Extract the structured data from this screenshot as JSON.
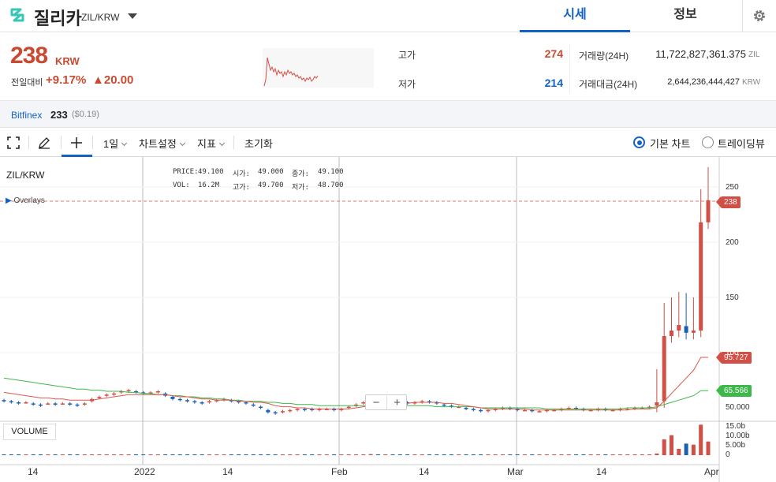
{
  "header": {
    "coin_name": "질리카",
    "pair": "ZIL/KRW",
    "tabs": [
      {
        "label": "시세"
      },
      {
        "label": "정보"
      }
    ]
  },
  "summary": {
    "price": "238",
    "unit": "KRW",
    "change_label": "전일대비",
    "change_rate": "+9.17%",
    "change_amount": "▲20.00",
    "high_label": "고가",
    "high": "274",
    "low_label": "저가",
    "low": "214",
    "volume_label": "거래량(24H)",
    "volume": "11,722,827,361.375",
    "volume_unit": "ZIL",
    "value_label": "거래대금(24H)",
    "value": "2,644,236,444,427",
    "value_unit": "KRW"
  },
  "exchange": {
    "name": "Bitfinex",
    "price": "233",
    "usd": "($0.19)"
  },
  "toolbar": {
    "interval": "1일",
    "chart_settings": "차트설정",
    "indicators": "지표",
    "reset": "초기화",
    "basic_chart": "기본 차트",
    "tradingview": "트레이딩뷰"
  },
  "chart_legend": {
    "symbol": "ZIL/KRW",
    "price_label": "PRICE:",
    "price": "49.100",
    "open_label": "시가:",
    "open": "49.000",
    "close_label": "종가:",
    "close": "49.100",
    "vol_label": "VOL:",
    "vol": "16.2M",
    "high_label": "고가:",
    "high": "49.700",
    "low_label": "저가:",
    "low": "48.700",
    "overlays": "Overlays",
    "volume": "VOLUME"
  },
  "chart_tags": {
    "last": "238",
    "ma_short": "95.727",
    "ma_long": "65.566"
  },
  "colors": {
    "up": "#d24f45",
    "down": "#1a5fb4",
    "ma_short": "#e0574f",
    "ma_long": "#3cb94a",
    "accent": "#1261c4"
  },
  "chart_data": {
    "type": "candlestick",
    "y_ticks": [
      "250",
      "200",
      "150",
      "100",
      "50.000"
    ],
    "volume_ticks": [
      "15.0b",
      "10.00b",
      "5.00b",
      "0"
    ],
    "x_ticks": [
      "14",
      "2022",
      "14",
      "Feb",
      "14",
      "Mar",
      "14",
      "Apr"
    ],
    "ylim": [
      40,
      275
    ],
    "closes": [
      56,
      55,
      54,
      55,
      53,
      52,
      54,
      53,
      54,
      53,
      52,
      54,
      58,
      60,
      62,
      63,
      65,
      66,
      64,
      63,
      64,
      65,
      61,
      58,
      57,
      56,
      55,
      54,
      56,
      57,
      58,
      56,
      55,
      54,
      52,
      50,
      46,
      45,
      47,
      48,
      49,
      48,
      48,
      49,
      49,
      48,
      49,
      51,
      53,
      55,
      57,
      56,
      58,
      57,
      55,
      54,
      55,
      56,
      55,
      54,
      52,
      51,
      51,
      49,
      48,
      47,
      48,
      49,
      50,
      49,
      48,
      48,
      47,
      47,
      48,
      48,
      49,
      50,
      49,
      48,
      48,
      49,
      48,
      48,
      49,
      49,
      50,
      50,
      51,
      55,
      115,
      120,
      125,
      118,
      120,
      218,
      238
    ],
    "opens": [
      57,
      56,
      55,
      55,
      54,
      53,
      54,
      54,
      54,
      54,
      53,
      53,
      56,
      59,
      61,
      62,
      64,
      65,
      65,
      64,
      63,
      64,
      63,
      60,
      58,
      57,
      56,
      55,
      55,
      56,
      57,
      57,
      56,
      55,
      53,
      51,
      48,
      46,
      46,
      47,
      48,
      49,
      49,
      48,
      49,
      49,
      48,
      50,
      52,
      54,
      56,
      57,
      57,
      58,
      56,
      55,
      54,
      55,
      56,
      55,
      53,
      52,
      51,
      50,
      49,
      48,
      47,
      48,
      49,
      50,
      49,
      48,
      48,
      47,
      47,
      48,
      48,
      49,
      50,
      49,
      48,
      48,
      49,
      48,
      48,
      49,
      49,
      50,
      50,
      52,
      56,
      115,
      120,
      124,
      118,
      120,
      218
    ],
    "volumes": [
      0.3,
      0.2,
      0.2,
      0.2,
      0.1,
      0.2,
      0.2,
      0.1,
      0.2,
      0.1,
      0.2,
      0.2,
      0.4,
      0.4,
      0.4,
      0.3,
      0.4,
      0.3,
      0.4,
      0.2,
      0.3,
      0.3,
      0.4,
      0.3,
      0.2,
      0.2,
      0.2,
      0.2,
      0.2,
      0.2,
      0.3,
      0.2,
      0.2,
      0.2,
      0.2,
      0.2,
      0.4,
      0.3,
      0.2,
      0.2,
      0.2,
      0.2,
      0.1,
      0.2,
      0.2,
      0.2,
      0.2,
      0.3,
      0.4,
      0.4,
      0.5,
      0.4,
      0.4,
      0.3,
      0.3,
      0.2,
      0.2,
      0.2,
      0.2,
      0.2,
      0.2,
      0.2,
      0.2,
      0.2,
      0.2,
      0.3,
      0.2,
      0.2,
      0.2,
      0.2,
      0.2,
      0.2,
      0.2,
      0.2,
      0.2,
      0.2,
      0.2,
      0.3,
      0.3,
      0.2,
      0.2,
      0.2,
      0.2,
      0.2,
      0.2,
      0.2,
      0.2,
      0.3,
      0.3,
      0.8,
      7.5,
      9.5,
      3.0,
      5.5,
      5.0,
      14.5,
      6.5
    ],
    "ma_short": [
      64,
      63,
      62,
      61,
      60,
      59,
      59,
      58,
      58,
      57,
      57,
      57,
      57,
      58,
      59,
      60,
      61,
      62,
      62,
      62,
      62,
      62,
      62,
      61,
      60,
      60,
      59,
      58,
      58,
      57,
      57,
      57,
      56,
      56,
      55,
      55,
      54,
      52,
      51,
      51,
      50,
      50,
      49,
      49,
      49,
      49,
      49,
      49,
      50,
      51,
      52,
      53,
      53,
      54,
      54,
      54,
      55,
      55,
      55,
      55,
      54,
      54,
      53,
      52,
      51,
      50,
      49,
      49,
      49,
      49,
      49,
      49,
      48,
      48,
      48,
      48,
      48,
      48,
      48,
      48,
      48,
      48,
      48,
      48,
      48,
      48,
      49,
      49,
      49,
      50,
      56,
      63,
      70,
      77,
      84,
      95.727,
      95.727
    ],
    "ma_long": [
      77,
      76,
      75,
      74,
      73,
      72,
      71,
      70,
      69,
      68,
      67,
      67,
      66,
      66,
      65,
      65,
      65,
      64,
      64,
      63,
      63,
      62,
      62,
      61,
      61,
      60,
      60,
      59,
      59,
      58,
      58,
      57,
      57,
      56,
      56,
      56,
      55,
      55,
      54,
      54,
      53,
      53,
      53,
      52,
      52,
      52,
      52,
      52,
      52,
      52,
      52,
      52,
      52,
      52,
      52,
      52,
      52,
      52,
      52,
      51,
      51,
      51,
      51,
      51,
      51,
      50,
      50,
      50,
      50,
      50,
      50,
      50,
      50,
      50,
      49,
      49,
      49,
      49,
      49,
      49,
      49,
      49,
      49,
      49,
      49,
      50,
      50,
      50,
      50,
      51,
      53,
      55,
      57,
      59,
      61,
      65.566,
      65.566
    ]
  }
}
